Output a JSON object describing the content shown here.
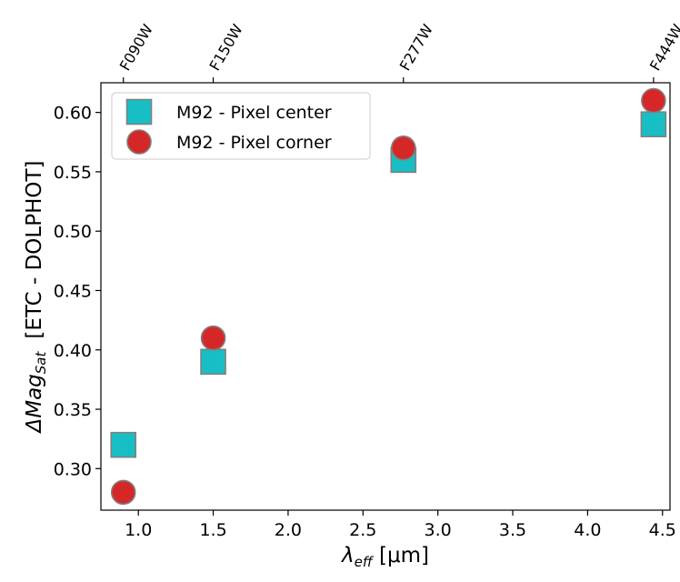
{
  "chart_data": {
    "type": "scatter",
    "title": "",
    "xlabel_symbol": "λ",
    "xlabel_sub": "eff",
    "xlabel_unit": " [μm]",
    "ylabel_prefix": "ΔMag",
    "ylabel_sub": "Sat",
    "ylabel_suffix": "[ETC - DOLPHOT]",
    "xlim": [
      0.75,
      4.55
    ],
    "ylim": [
      0.265,
      0.625
    ],
    "xticks": [
      1.0,
      1.5,
      2.0,
      2.5,
      3.0,
      3.5,
      4.0,
      4.5
    ],
    "xtick_labels": [
      "1.0",
      "1.5",
      "2.0",
      "2.5",
      "3.0",
      "3.5",
      "4.0",
      "4.5"
    ],
    "yticks": [
      0.3,
      0.35,
      0.4,
      0.45,
      0.5,
      0.55,
      0.6
    ],
    "ytick_labels": [
      "0.30",
      "0.35",
      "0.40",
      "0.45",
      "0.50",
      "0.55",
      "0.60"
    ],
    "top_axis": {
      "filters": [
        "F090W",
        "F150W",
        "F277W",
        "F444W"
      ],
      "positions": [
        0.9,
        1.5,
        2.77,
        4.44
      ]
    },
    "legend_position": "upper-left",
    "series": [
      {
        "name": "M92 - Pixel center",
        "marker": "square",
        "color": "#17bfc4",
        "edge_color": "#808080",
        "x": [
          0.9,
          1.5,
          2.77,
          4.44
        ],
        "y": [
          0.32,
          0.39,
          0.56,
          0.59
        ]
      },
      {
        "name": "M92 - Pixel corner",
        "marker": "circle",
        "color": "#d62728",
        "edge_color": "#808080",
        "x": [
          0.9,
          1.5,
          2.77,
          4.44
        ],
        "y": [
          0.28,
          0.41,
          0.57,
          0.61
        ]
      }
    ]
  }
}
